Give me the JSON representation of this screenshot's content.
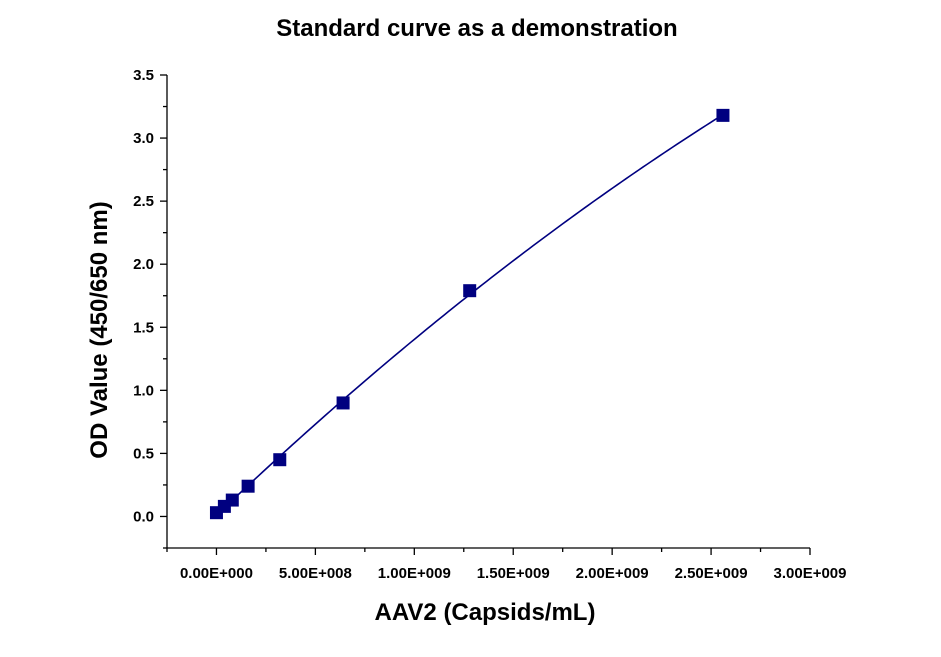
{
  "chart_data": {
    "type": "scatter",
    "title": "Standard curve as a demonstration",
    "xlabel": "AAV2 (Capsids/mL)",
    "ylabel": "OD Value (450/650 nm)",
    "xlim": [
      -250000000,
      3000000000
    ],
    "ylim": [
      -0.25,
      3.5
    ],
    "x_ticks": [
      0,
      500000000,
      1000000000,
      1500000000,
      2000000000,
      2500000000,
      3000000000
    ],
    "x_tick_labels": [
      "0.00E+000",
      "5.00E+008",
      "1.00E+009",
      "1.50E+009",
      "2.00E+009",
      "2.50E+009",
      "3.00E+009"
    ],
    "y_ticks": [
      0,
      0.5,
      1,
      1.5,
      2,
      2.5,
      3,
      3.5
    ],
    "y_tick_labels": [
      "0.0",
      "0.5",
      "1.0",
      "1.5",
      "2.0",
      "2.5",
      "3.0",
      "3.5"
    ],
    "grid": false,
    "legend": "none",
    "series": [
      {
        "x": [
          0,
          40000000,
          80000000,
          160000000,
          320000000,
          640000000,
          1280000000,
          2560000000
        ],
        "y": [
          0.03,
          0.08,
          0.13,
          0.24,
          0.45,
          0.9,
          1.79,
          3.18
        ],
        "color": "#000080",
        "marker": "square",
        "fit_line": true
      }
    ]
  }
}
